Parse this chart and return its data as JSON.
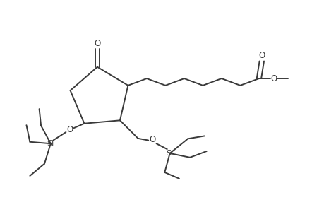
{
  "background_color": "#ffffff",
  "line_color": "#3a3a3a",
  "line_width": 1.4,
  "figsize": [
    4.6,
    3.0
  ],
  "dpi": 100,
  "xlim": [
    0.0,
    9.2
  ],
  "ylim": [
    0.3,
    6.3
  ]
}
